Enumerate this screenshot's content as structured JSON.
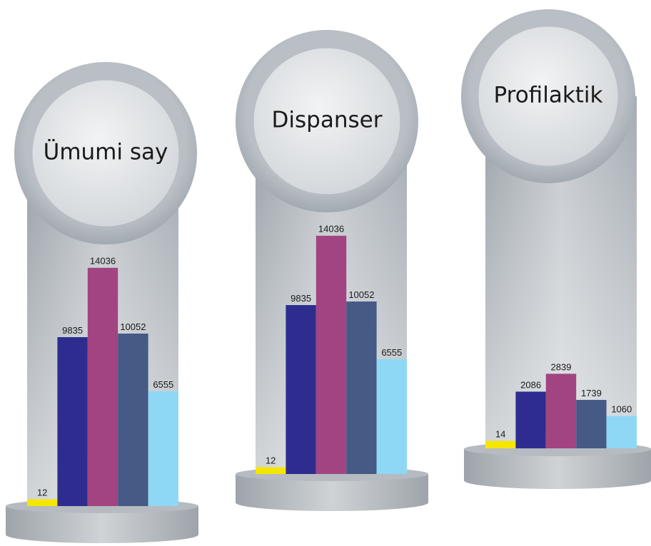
{
  "chart_data": [
    {
      "type": "bar",
      "title": "Ümumi say",
      "values": [
        12,
        9835,
        14036,
        10052,
        6555
      ],
      "colors": [
        "#f5e600",
        "#2e2d8f",
        "#a24482",
        "#465a86",
        "#8ed8f6"
      ],
      "ylim": [
        -400,
        14500
      ]
    },
    {
      "type": "bar",
      "title": "Dispanser",
      "values": [
        12,
        9835,
        14036,
        10052,
        6555
      ],
      "colors": [
        "#f5e600",
        "#2e2d8f",
        "#a24482",
        "#465a86",
        "#8ed8f6"
      ],
      "ylim": [
        -400,
        14500
      ]
    },
    {
      "type": "bar",
      "title": "Profilaktik",
      "values": [
        14,
        2086,
        2839,
        1739,
        1060
      ],
      "colors": [
        "#f5e600",
        "#2e2d8f",
        "#a24482",
        "#465a86",
        "#8ed8f6"
      ],
      "ylim": [
        -300,
        3000
      ]
    }
  ]
}
